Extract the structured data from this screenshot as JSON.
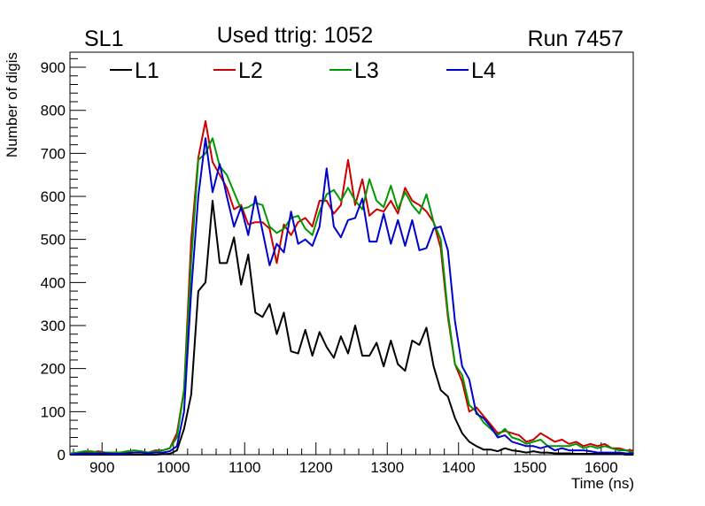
{
  "chart_data": {
    "type": "line",
    "title": "Used ttrig: 1052",
    "left_label": "SL1",
    "right_label": "Run 7457",
    "xlabel": "Time (ns)",
    "ylabel": "Number of digis",
    "xlim": [
      855,
      1645
    ],
    "ylim": [
      0,
      935
    ],
    "xticks": [
      900,
      1000,
      1100,
      1200,
      1300,
      1400,
      1500,
      1600
    ],
    "yticks": [
      0,
      100,
      200,
      300,
      400,
      500,
      600,
      700,
      800,
      900
    ],
    "legend_position": "top (horizontal)",
    "series": [
      {
        "name": "L1",
        "color": "#000000",
        "x": [
          855,
          875,
          895,
          915,
          935,
          955,
          975,
          995,
          1005,
          1015,
          1025,
          1035,
          1045,
          1055,
          1065,
          1075,
          1085,
          1095,
          1105,
          1115,
          1125,
          1135,
          1145,
          1155,
          1165,
          1175,
          1185,
          1195,
          1205,
          1215,
          1225,
          1235,
          1245,
          1255,
          1265,
          1275,
          1285,
          1295,
          1305,
          1315,
          1325,
          1335,
          1345,
          1355,
          1365,
          1375,
          1385,
          1395,
          1405,
          1415,
          1425,
          1435,
          1445,
          1455,
          1465,
          1475,
          1485,
          1495,
          1505,
          1515,
          1525,
          1535,
          1545,
          1555,
          1565,
          1575,
          1585,
          1595,
          1605,
          1615,
          1625,
          1635,
          1645
        ],
        "y": [
          0,
          0,
          0,
          0,
          0,
          0,
          0,
          2,
          10,
          60,
          140,
          380,
          400,
          590,
          445,
          445,
          505,
          395,
          465,
          330,
          320,
          350,
          280,
          330,
          240,
          235,
          290,
          230,
          285,
          250,
          225,
          275,
          235,
          300,
          230,
          230,
          260,
          205,
          265,
          210,
          195,
          265,
          255,
          295,
          205,
          150,
          135,
          85,
          50,
          30,
          20,
          12,
          12,
          8,
          15,
          10,
          8,
          5,
          8,
          5,
          5,
          3,
          3,
          3,
          2,
          2,
          2,
          2,
          2,
          2,
          2,
          0,
          0
        ]
      },
      {
        "name": "L2",
        "color": "#cc0000",
        "x": [
          855,
          865,
          875,
          885,
          895,
          905,
          915,
          925,
          935,
          945,
          955,
          965,
          975,
          985,
          995,
          1005,
          1015,
          1025,
          1035,
          1045,
          1055,
          1065,
          1075,
          1085,
          1095,
          1105,
          1115,
          1125,
          1135,
          1145,
          1155,
          1165,
          1175,
          1185,
          1195,
          1205,
          1215,
          1225,
          1235,
          1245,
          1255,
          1265,
          1275,
          1285,
          1295,
          1305,
          1315,
          1325,
          1335,
          1345,
          1355,
          1365,
          1375,
          1385,
          1395,
          1405,
          1415,
          1425,
          1435,
          1445,
          1455,
          1465,
          1475,
          1485,
          1495,
          1505,
          1515,
          1525,
          1535,
          1545,
          1555,
          1565,
          1575,
          1585,
          1595,
          1605,
          1615,
          1625,
          1635,
          1645
        ],
        "y": [
          2,
          5,
          5,
          5,
          8,
          5,
          5,
          5,
          5,
          5,
          5,
          5,
          10,
          10,
          15,
          50,
          150,
          500,
          690,
          775,
          680,
          650,
          620,
          570,
          580,
          535,
          540,
          540,
          525,
          445,
          535,
          510,
          540,
          550,
          530,
          590,
          590,
          560,
          580,
          685,
          580,
          640,
          555,
          570,
          565,
          590,
          560,
          620,
          590,
          580,
          565,
          540,
          480,
          320,
          210,
          170,
          100,
          110,
          90,
          70,
          50,
          55,
          50,
          45,
          30,
          35,
          50,
          40,
          30,
          35,
          25,
          30,
          20,
          25,
          20,
          25,
          15,
          15,
          10,
          10
        ]
      },
      {
        "name": "L3",
        "color": "#009900",
        "x": [
          855,
          865,
          875,
          885,
          895,
          905,
          915,
          925,
          935,
          945,
          955,
          965,
          975,
          985,
          995,
          1005,
          1015,
          1025,
          1035,
          1045,
          1055,
          1065,
          1075,
          1085,
          1095,
          1105,
          1115,
          1125,
          1135,
          1145,
          1155,
          1165,
          1175,
          1185,
          1195,
          1205,
          1215,
          1225,
          1235,
          1245,
          1255,
          1265,
          1275,
          1285,
          1295,
          1305,
          1315,
          1325,
          1335,
          1345,
          1355,
          1365,
          1375,
          1385,
          1395,
          1405,
          1415,
          1425,
          1435,
          1445,
          1455,
          1465,
          1475,
          1485,
          1495,
          1505,
          1515,
          1525,
          1535,
          1545,
          1555,
          1565,
          1575,
          1585,
          1595,
          1605,
          1615,
          1625,
          1635,
          1645
        ],
        "y": [
          3,
          5,
          8,
          8,
          5,
          5,
          5,
          5,
          8,
          10,
          8,
          5,
          8,
          10,
          15,
          40,
          150,
          450,
          685,
          700,
          735,
          670,
          650,
          610,
          570,
          575,
          585,
          580,
          530,
          515,
          525,
          550,
          555,
          525,
          510,
          565,
          605,
          615,
          590,
          620,
          590,
          570,
          640,
          590,
          575,
          625,
          570,
          610,
          580,
          560,
          605,
          540,
          500,
          330,
          210,
          185,
          115,
          100,
          75,
          60,
          45,
          60,
          40,
          35,
          25,
          30,
          35,
          20,
          20,
          20,
          20,
          25,
          15,
          20,
          15,
          20,
          15,
          10,
          10,
          5
        ]
      },
      {
        "name": "L4",
        "color": "#0000cc",
        "x": [
          855,
          865,
          875,
          885,
          895,
          905,
          915,
          925,
          935,
          945,
          955,
          965,
          975,
          985,
          995,
          1005,
          1015,
          1025,
          1035,
          1045,
          1055,
          1065,
          1075,
          1085,
          1095,
          1105,
          1115,
          1125,
          1135,
          1145,
          1155,
          1165,
          1175,
          1185,
          1195,
          1205,
          1215,
          1225,
          1235,
          1245,
          1255,
          1265,
          1275,
          1285,
          1295,
          1305,
          1315,
          1325,
          1335,
          1345,
          1355,
          1365,
          1375,
          1385,
          1395,
          1405,
          1415,
          1425,
          1435,
          1445,
          1455,
          1465,
          1475,
          1485,
          1495,
          1505,
          1515,
          1525,
          1535,
          1545,
          1555,
          1565,
          1575,
          1585,
          1595,
          1605,
          1615,
          1625,
          1635,
          1645
        ],
        "y": [
          0,
          2,
          3,
          2,
          3,
          3,
          2,
          2,
          3,
          5,
          5,
          3,
          5,
          5,
          8,
          20,
          100,
          380,
          600,
          735,
          610,
          675,
          600,
          530,
          575,
          510,
          600,
          520,
          440,
          490,
          470,
          565,
          490,
          500,
          485,
          530,
          665,
          530,
          505,
          545,
          550,
          595,
          495,
          495,
          560,
          490,
          545,
          485,
          545,
          475,
          480,
          525,
          530,
          475,
          310,
          205,
          175,
          95,
          85,
          65,
          40,
          45,
          30,
          25,
          20,
          20,
          15,
          20,
          10,
          15,
          10,
          10,
          10,
          8,
          5,
          5,
          5,
          5,
          3,
          3
        ]
      }
    ]
  }
}
